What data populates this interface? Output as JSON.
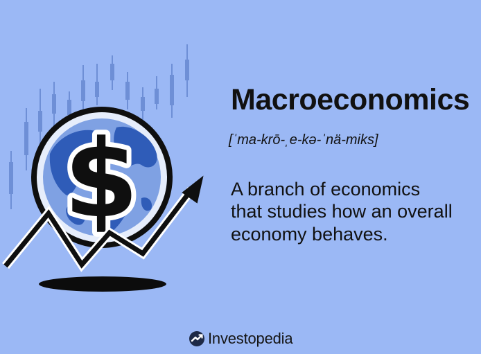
{
  "term": {
    "title": "Macroeconomics",
    "pronunciation": "[ˈma-krō-ˌe-kə-ˈnä-miks]",
    "definition_lines": [
      "A branch of economics",
      "that studies how an overall",
      "economy behaves."
    ]
  },
  "illustration": {
    "symbol": "$",
    "description_icons": [
      "candlestick-chart-icon",
      "globe-icon",
      "dollar-sign-icon",
      "trend-arrow-icon"
    ]
  },
  "brand": {
    "name": "Investopedia",
    "logo_icon": "investopedia-logo-icon"
  },
  "colors": {
    "background": "#9bb8f5",
    "candles": "#6e8fd6",
    "globe_ocean": "#7fa1e3",
    "globe_land": "#2f5cb8",
    "ink": "#111111"
  }
}
